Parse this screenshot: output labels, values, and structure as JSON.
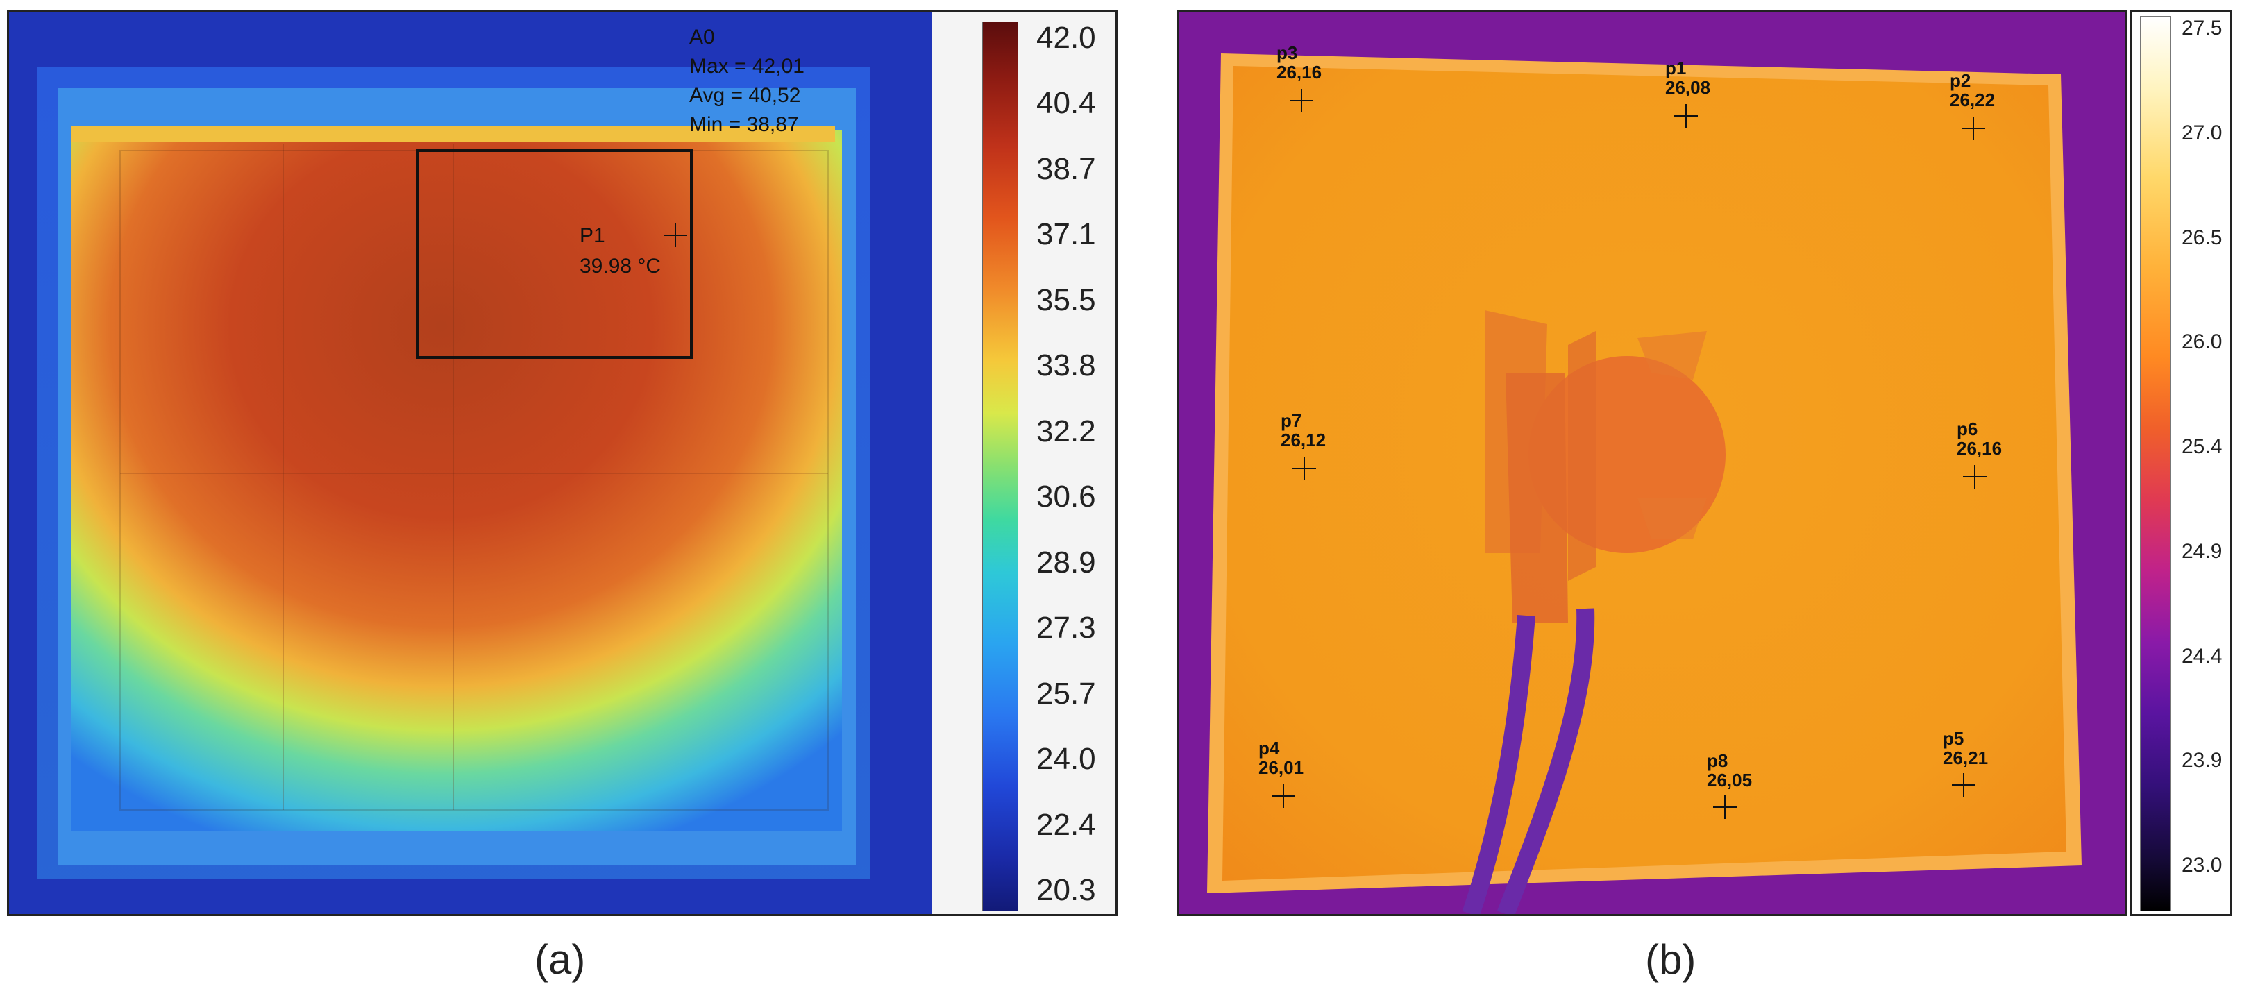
{
  "panel_a": {
    "caption": "(a)",
    "roi": {
      "name": "A0",
      "max": "Max = 42,01",
      "avg": "Avg = 40,52",
      "min": "Min = 38,87"
    },
    "point": {
      "name": "P1",
      "value": "39.98 °C"
    },
    "scale_ticks": [
      "42.0",
      "40.4",
      "38.7",
      "37.1",
      "35.5",
      "33.8",
      "32.2",
      "30.6",
      "28.9",
      "27.3",
      "25.7",
      "24.0",
      "22.4",
      "20.3"
    ]
  },
  "panel_b": {
    "caption": "(b)",
    "points": [
      {
        "name": "p3",
        "value": "26,16"
      },
      {
        "name": "p1",
        "value": "26,08"
      },
      {
        "name": "p2",
        "value": "26,22"
      },
      {
        "name": "p7",
        "value": "26,12"
      },
      {
        "name": "p6",
        "value": "26,16"
      },
      {
        "name": "p4",
        "value": "26,01"
      },
      {
        "name": "p8",
        "value": "26,05"
      },
      {
        "name": "p5",
        "value": "26,21"
      }
    ],
    "scale_ticks": [
      "27.5",
      "27.0",
      "26.5",
      "26.0",
      "25.4",
      "24.9",
      "24.4",
      "23.9",
      "23.0"
    ]
  }
}
